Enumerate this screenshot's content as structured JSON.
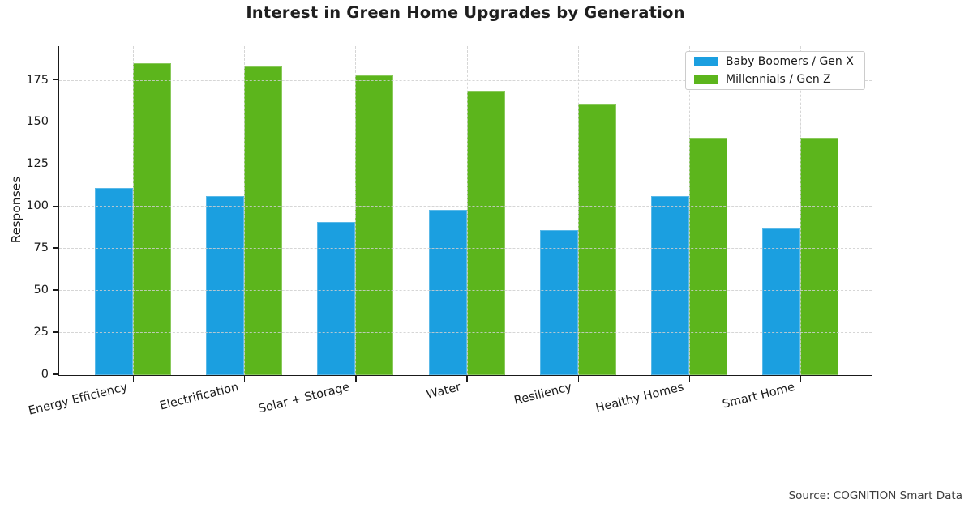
{
  "page": {
    "background": "#ffffff"
  },
  "chart_data": {
    "type": "bar",
    "title": "Interest in Green Home Upgrades by Generation",
    "xlabel": "",
    "ylabel": "Responses",
    "categories": [
      "Energy Efficiency",
      "Electrification",
      "Solar + Storage",
      "Water",
      "Resiliency",
      "Healthy Homes",
      "Smart Home"
    ],
    "series": [
      {
        "name": "Baby Boomers / Gen X",
        "color": "#1b9fe0",
        "values": [
          111,
          106,
          91,
          98,
          86,
          106,
          87
        ]
      },
      {
        "name": "Millennials / Gen Z",
        "color": "#5cb51c",
        "values": [
          185,
          183,
          178,
          169,
          161,
          141,
          141
        ]
      }
    ],
    "yticks": [
      0,
      25,
      50,
      75,
      100,
      125,
      150,
      175
    ],
    "ylim": [
      0,
      195
    ],
    "grid": true,
    "grid_style": "dashed",
    "legend_position": "upper right"
  },
  "source_note": "Source: COGNITION Smart Data",
  "colors": {
    "grid": "#cfcfcf",
    "axis": "#1a1a1a",
    "text": "#1a1a1a",
    "source_text": "#3d3d3d",
    "background": "#ffffff"
  }
}
